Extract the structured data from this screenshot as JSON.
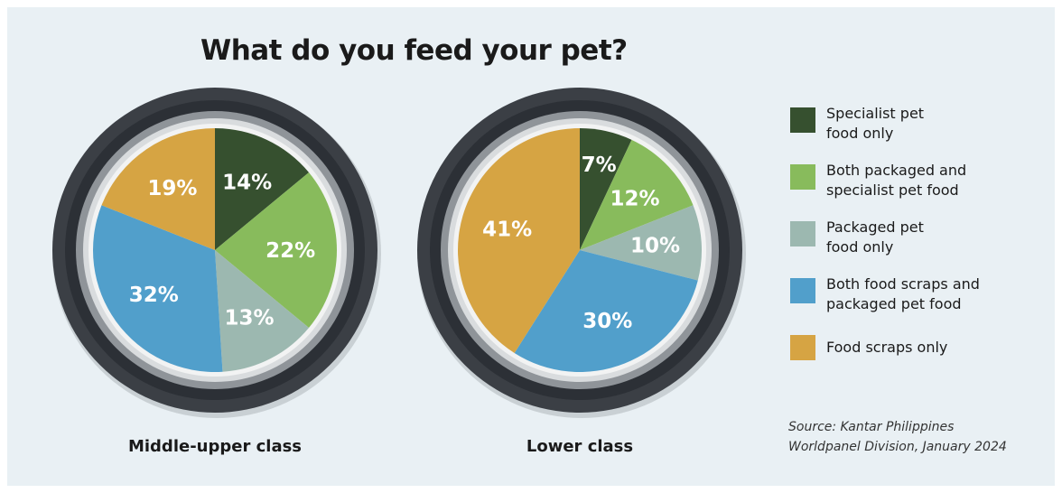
{
  "chart_data": {
    "type": "pie",
    "title": "What do you feed your pet?",
    "categories": [
      "Specialist pet food only",
      "Both packaged and specialist pet food",
      "Packaged pet food only",
      "Both food scraps and packaged pet food",
      "Food scraps only"
    ],
    "colors": [
      "#36502f",
      "#88bb5c",
      "#9cb8b0",
      "#519fcb",
      "#d6a443"
    ],
    "legend_position": "right",
    "series": [
      {
        "name": "Middle-upper class",
        "values": [
          14,
          22,
          13,
          32,
          19
        ],
        "labels": [
          "14%",
          "22%",
          "13%",
          "32%",
          "19%"
        ]
      },
      {
        "name": "Lower class",
        "values": [
          7,
          12,
          10,
          30,
          41
        ],
        "labels": [
          "7%",
          "12%",
          "10%",
          "30%",
          "41%"
        ]
      }
    ],
    "legend_lines": [
      [
        "Specialist pet",
        "food only"
      ],
      [
        "Both packaged and",
        "specialist pet food"
      ],
      [
        "Packaged pet",
        "food only"
      ],
      [
        "Both food scraps and",
        "packaged pet food"
      ],
      [
        "Food scraps only"
      ]
    ],
    "source": [
      "Source: Kantar Philippines",
      "Worldpanel Division, January 2024"
    ]
  }
}
